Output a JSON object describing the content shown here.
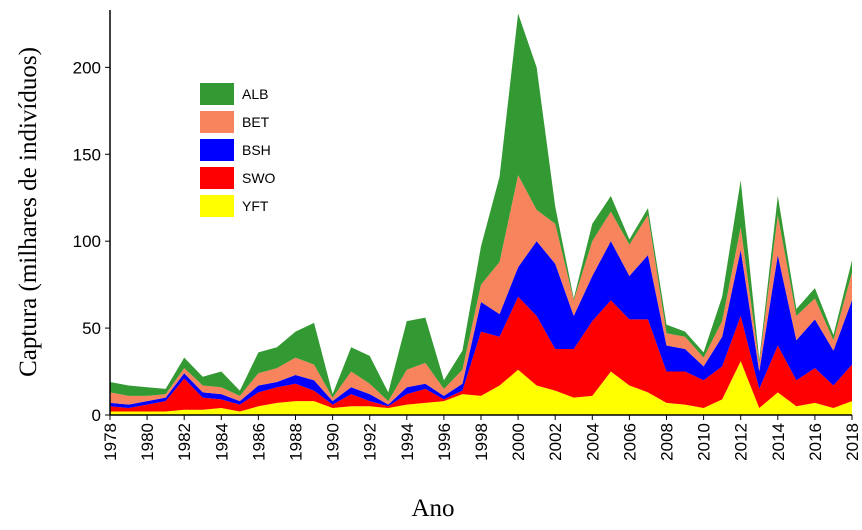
{
  "chart_data": {
    "type": "stacked_area",
    "xlabel": "Ano",
    "ylabel": "Captura (milhares de indivíduos)",
    "x": [
      1978,
      1979,
      1980,
      1981,
      1982,
      1983,
      1984,
      1985,
      1986,
      1987,
      1988,
      1989,
      1990,
      1991,
      1992,
      1993,
      1994,
      1995,
      1996,
      1997,
      1998,
      1999,
      2000,
      2001,
      2002,
      2003,
      2004,
      2005,
      2006,
      2007,
      2008,
      2009,
      2010,
      2011,
      2012,
      2013,
      2014,
      2015,
      2016,
      2017,
      2018
    ],
    "xlim": [
      1978,
      2018
    ],
    "xticks": [
      1978,
      1980,
      1982,
      1984,
      1986,
      1988,
      1990,
      1992,
      1994,
      1996,
      1998,
      2000,
      2002,
      2004,
      2006,
      2008,
      2010,
      2012,
      2014,
      2016,
      2018
    ],
    "ylim": [
      0,
      233
    ],
    "yticks": [
      0,
      50,
      100,
      150,
      200
    ],
    "series": [
      {
        "name": "ALB",
        "color": "#339933",
        "values": [
          6,
          6,
          5,
          3,
          6,
          5,
          9,
          3,
          12,
          12,
          15,
          24,
          2,
          14,
          16,
          5,
          28,
          26,
          5,
          11,
          22,
          49,
          93,
          82,
          10,
          1,
          10,
          9,
          3,
          4,
          5,
          3,
          3,
          14,
          27,
          2,
          11,
          4,
          6,
          3,
          7
        ]
      },
      {
        "name": "BET",
        "color": "#f8845e",
        "values": [
          6,
          5,
          3,
          2,
          3,
          4,
          4,
          3,
          7,
          8,
          10,
          9,
          2,
          9,
          6,
          2,
          10,
          12,
          4,
          8,
          10,
          30,
          53,
          18,
          23,
          9,
          20,
          17,
          18,
          23,
          7,
          7,
          5,
          9,
          13,
          5,
          23,
          14,
          12,
          6,
          16
        ]
      },
      {
        "name": "BSH",
        "color": "#0000ff",
        "values": [
          2,
          2,
          2,
          2,
          3,
          3,
          3,
          2,
          4,
          3,
          5,
          6,
          2,
          4,
          4,
          1,
          4,
          3,
          2,
          4,
          17,
          13,
          17,
          43,
          49,
          19,
          26,
          34,
          25,
          37,
          15,
          13,
          8,
          17,
          38,
          10,
          52,
          23,
          28,
          20,
          37
        ]
      },
      {
        "name": "SWO",
        "color": "#ff0000",
        "values": [
          3,
          2,
          4,
          6,
          18,
          7,
          5,
          4,
          8,
          9,
          10,
          6,
          2,
          7,
          3,
          1,
          6,
          8,
          1,
          2,
          37,
          28,
          42,
          40,
          24,
          28,
          43,
          41,
          38,
          42,
          18,
          19,
          16,
          19,
          26,
          11,
          27,
          15,
          20,
          13,
          21
        ]
      },
      {
        "name": "YFT",
        "color": "#ffff00",
        "values": [
          2,
          2,
          2,
          2,
          3,
          3,
          4,
          2,
          5,
          7,
          8,
          8,
          4,
          5,
          5,
          4,
          6,
          7,
          8,
          12,
          11,
          17,
          26,
          17,
          14,
          10,
          11,
          25,
          17,
          13,
          7,
          6,
          4,
          9,
          31,
          4,
          13,
          5,
          7,
          4,
          8
        ]
      }
    ]
  }
}
